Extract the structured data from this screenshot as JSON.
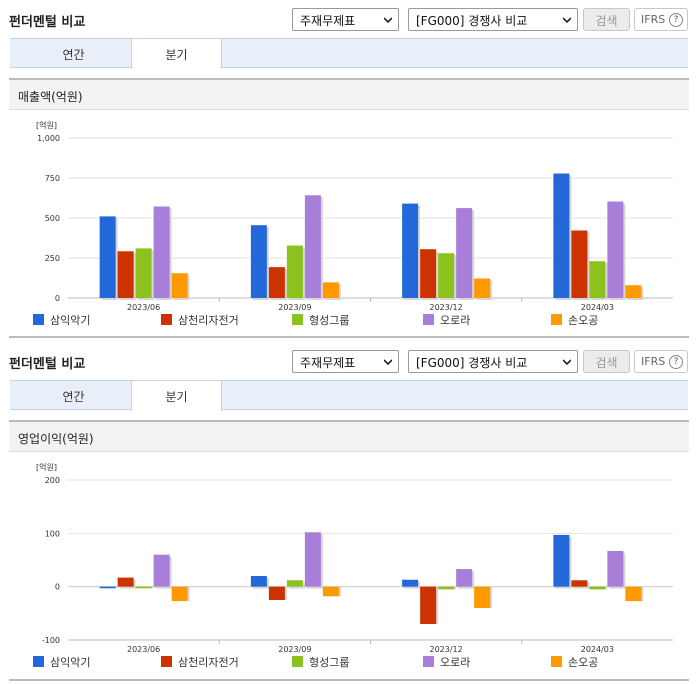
{
  "header": {
    "title": "펀더멘털 비교",
    "select_statement": "주재무제표",
    "select_compare": "[FG000] 경쟁사 비교",
    "search_label": "검색",
    "ifrs_label": "IFRS",
    "help_label": "?"
  },
  "tabs": [
    {
      "label": "연간",
      "active": false
    },
    {
      "label": "분기",
      "active": true
    }
  ],
  "legend": [
    "삼익악기",
    "삼천리자전거",
    "형성그룹",
    "오로라",
    "손오공"
  ],
  "colors": [
    "#2268d9",
    "#cc3300",
    "#8cc21e",
    "#a97ed8",
    "#ff9900"
  ],
  "chart_data": [
    {
      "type": "bar",
      "title": "매출액(억원)",
      "unit_label": "[억원]",
      "categories": [
        "2023/06",
        "2023/09",
        "2023/12",
        "2024/03"
      ],
      "ylim": [
        0,
        1000
      ],
      "yticks": [
        0,
        250,
        500,
        750,
        1000
      ],
      "ytick_labels": [
        "0",
        "250",
        "500",
        "750",
        "1,000"
      ],
      "series": [
        {
          "name": "삼익악기",
          "values": [
            510,
            455,
            590,
            778
          ]
        },
        {
          "name": "삼천리자전거",
          "values": [
            292,
            193,
            305,
            422
          ]
        },
        {
          "name": "형성그룹",
          "values": [
            310,
            328,
            280,
            230
          ]
        },
        {
          "name": "오로라",
          "values": [
            572,
            642,
            562,
            603
          ]
        },
        {
          "name": "손오공",
          "values": [
            155,
            98,
            122,
            80
          ]
        }
      ]
    },
    {
      "type": "bar",
      "title": "영업이익(억원)",
      "unit_label": "[억원]",
      "categories": [
        "2023/06",
        "2023/09",
        "2023/12",
        "2024/03"
      ],
      "ylim": [
        -100,
        200
      ],
      "yticks": [
        -100,
        0,
        100,
        200
      ],
      "ytick_labels": [
        "-100",
        "0",
        "100",
        "200"
      ],
      "series": [
        {
          "name": "삼익악기",
          "values": [
            -3,
            20,
            13,
            97
          ]
        },
        {
          "name": "삼천리자전거",
          "values": [
            17,
            -25,
            -70,
            12
          ]
        },
        {
          "name": "형성그룹",
          "values": [
            -3,
            12,
            -5,
            -5
          ]
        },
        {
          "name": "오로라",
          "values": [
            60,
            102,
            33,
            67
          ]
        },
        {
          "name": "손오공",
          "values": [
            -27,
            -18,
            -40,
            -27
          ]
        }
      ]
    }
  ]
}
